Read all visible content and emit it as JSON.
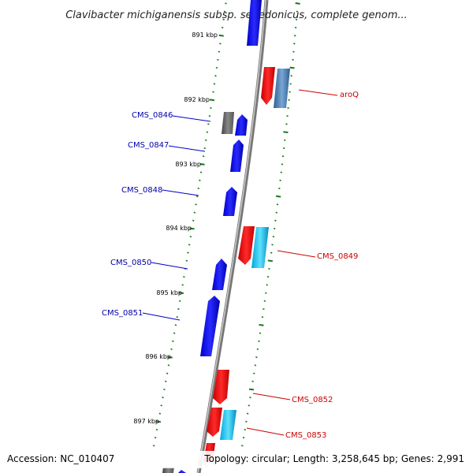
{
  "title": "Clavibacter michiganensis subsp. sepedonicus, complete genom...",
  "footer": {
    "accession": "Accession: NC_010407",
    "topology": "Topology: circular; Length: 3,258,645 bp; Genes: 2,991"
  },
  "colors": {
    "forward_cds": "#0a0aee",
    "reverse_cds": "#e80a0a",
    "hypothetical": "#666666",
    "trna_like": "#22ccee",
    "steelblue": "#4a7fb5",
    "forward_label": "#0000aa",
    "reverse_label": "#cc0000",
    "tick_green": "#1a7a1a",
    "backbone": "#888888"
  },
  "scale_labels": [
    "891 kbp",
    "892 kbp",
    "893 kbp",
    "894 kbp",
    "895 kbp",
    "896 kbp",
    "897 kbp"
  ],
  "gene_labels": {
    "cms0846": "CMS_0846",
    "cms0847": "CMS_0847",
    "cms0848": "CMS_0848",
    "cms0850": "CMS_0850",
    "cms0851": "CMS_0851",
    "aroq": "aroQ",
    "cms0849": "CMS_0849",
    "cms0852": "CMS_0852",
    "cms0853": "CMS_0853"
  }
}
